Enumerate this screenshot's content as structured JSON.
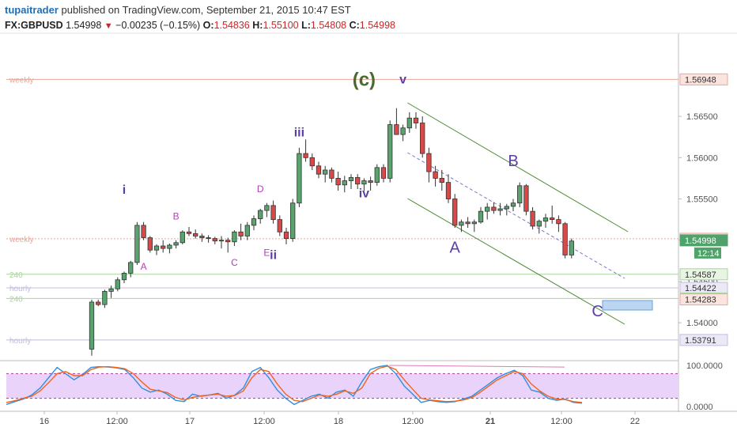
{
  "header": {
    "author": "tupaitrader",
    "published_text": "published on TradingView.com, September 21, 2015 10:47 EST",
    "symbol": "FX:GBPUSD",
    "last": "1.54998",
    "change": "−0.00235 (−0.15%)",
    "o_label": "O:",
    "o_value": "1.54836",
    "h_label": "H:",
    "h_value": "1.55100",
    "l_label": "L:",
    "l_value": "1.54808",
    "c_label": "C:",
    "c_value": "1.54998"
  },
  "colors": {
    "up": "#5aa36e",
    "down": "#d8494a",
    "wave_purple": "#5b3fa3",
    "wave_green": "#4b6b2e",
    "magenta": "#b43fb9",
    "channel": "#4d8a32",
    "midline": "#7f78c8",
    "weekly": "#e8a79a",
    "daily240": "#a8d49a",
    "hourly": "#c4bce0",
    "stoch_k": "#2f8fe0",
    "stoch_d": "#f0641e",
    "stoch_band": "#e9d3fb"
  },
  "chart_data": [
    {
      "type": "candlestick",
      "ylim": [
        1.5355,
        1.5745
      ],
      "x_ticks": [
        "16",
        "12:00",
        "17",
        "12:00",
        "18",
        "12:00",
        "21",
        "12:00",
        "22"
      ],
      "y_ticks": [
        "1.56500",
        "1.56000",
        "1.55500",
        "1.55000",
        "1.54500",
        "1.54000"
      ],
      "candles": [
        [
          1.5368,
          1.5428,
          1.536,
          1.5425
        ],
        [
          1.5425,
          1.5428,
          1.542,
          1.5422
        ],
        [
          1.5422,
          1.544,
          1.5418,
          1.5438
        ],
        [
          1.5438,
          1.5445,
          1.543,
          1.5441
        ],
        [
          1.5441,
          1.5455,
          1.5438,
          1.5452
        ],
        [
          1.5452,
          1.5462,
          1.5448,
          1.546
        ],
        [
          1.546,
          1.5475,
          1.5455,
          1.5473
        ],
        [
          1.5473,
          1.5522,
          1.547,
          1.5518
        ],
        [
          1.5518,
          1.5522,
          1.55,
          1.5503
        ],
        [
          1.5503,
          1.5505,
          1.5485,
          1.5488
        ],
        [
          1.5488,
          1.5495,
          1.5482,
          1.5493
        ],
        [
          1.5493,
          1.55,
          1.5485,
          1.549
        ],
        [
          1.549,
          1.5496,
          1.5484,
          1.5494
        ],
        [
          1.5494,
          1.55,
          1.549,
          1.5497
        ],
        [
          1.5497,
          1.5512,
          1.5495,
          1.551
        ],
        [
          1.551,
          1.5516,
          1.5505,
          1.5508
        ],
        [
          1.5508,
          1.5513,
          1.5502,
          1.5505
        ],
        [
          1.5505,
          1.5508,
          1.5498,
          1.5503
        ],
        [
          1.5503,
          1.5506,
          1.5497,
          1.5502
        ],
        [
          1.5502,
          1.5504,
          1.5495,
          1.5499
        ],
        [
          1.5499,
          1.5505,
          1.549,
          1.55
        ],
        [
          1.55,
          1.5503,
          1.5485,
          1.5498
        ],
        [
          1.5498,
          1.5512,
          1.5493,
          1.551
        ],
        [
          1.551,
          1.552,
          1.55,
          1.5505
        ],
        [
          1.5505,
          1.5522,
          1.55,
          1.5518
        ],
        [
          1.5518,
          1.553,
          1.5512,
          1.5526
        ],
        [
          1.5526,
          1.5538,
          1.552,
          1.5536
        ],
        [
          1.5536,
          1.5545,
          1.5528,
          1.5542
        ],
        [
          1.5542,
          1.5548,
          1.552,
          1.5525
        ],
        [
          1.5525,
          1.553,
          1.5505,
          1.551
        ],
        [
          1.551,
          1.5515,
          1.5495,
          1.5502
        ],
        [
          1.5502,
          1.555,
          1.5498,
          1.5545
        ],
        [
          1.5545,
          1.5612,
          1.554,
          1.5605
        ],
        [
          1.5605,
          1.5622,
          1.5595,
          1.56
        ],
        [
          1.56,
          1.5605,
          1.5585,
          1.559
        ],
        [
          1.559,
          1.5595,
          1.5575,
          1.558
        ],
        [
          1.558,
          1.559,
          1.557,
          1.5585
        ],
        [
          1.5585,
          1.5588,
          1.557,
          1.5575
        ],
        [
          1.5575,
          1.5583,
          1.556,
          1.5567
        ],
        [
          1.5567,
          1.5578,
          1.5558,
          1.5572
        ],
        [
          1.5572,
          1.558,
          1.5562,
          1.5576
        ],
        [
          1.5576,
          1.558,
          1.5562,
          1.5568
        ],
        [
          1.5568,
          1.5575,
          1.556,
          1.5572
        ],
        [
          1.5572,
          1.5577,
          1.556,
          1.557
        ],
        [
          1.557,
          1.5592,
          1.5566,
          1.5588
        ],
        [
          1.5588,
          1.5592,
          1.557,
          1.5575
        ],
        [
          1.5575,
          1.5645,
          1.557,
          1.564
        ],
        [
          1.564,
          1.566,
          1.563,
          1.5628
        ],
        [
          1.5628,
          1.564,
          1.562,
          1.5636
        ],
        [
          1.5636,
          1.5655,
          1.563,
          1.5648
        ],
        [
          1.5648,
          1.5655,
          1.5635,
          1.5642
        ],
        [
          1.5642,
          1.565,
          1.56,
          1.5605
        ],
        [
          1.5605,
          1.5612,
          1.557,
          1.5583
        ],
        [
          1.5583,
          1.559,
          1.5565,
          1.5575
        ],
        [
          1.5575,
          1.5585,
          1.556,
          1.557
        ],
        [
          1.557,
          1.558,
          1.5545,
          1.555
        ],
        [
          1.555,
          1.5556,
          1.5515,
          1.5518
        ],
        [
          1.5518,
          1.5525,
          1.551,
          1.5522
        ],
        [
          1.5522,
          1.5528,
          1.5515,
          1.552
        ],
        [
          1.552,
          1.5525,
          1.551,
          1.5522
        ],
        [
          1.5522,
          1.554,
          1.552,
          1.5535
        ],
        [
          1.5535,
          1.5545,
          1.5525,
          1.554
        ],
        [
          1.554,
          1.5546,
          1.5532,
          1.5536
        ],
        [
          1.5536,
          1.5545,
          1.553,
          1.5538
        ],
        [
          1.5538,
          1.5544,
          1.553,
          1.5541
        ],
        [
          1.5541,
          1.555,
          1.5535,
          1.5545
        ],
        [
          1.5545,
          1.557,
          1.554,
          1.5566
        ],
        [
          1.5566,
          1.5568,
          1.553,
          1.5535
        ],
        [
          1.5535,
          1.554,
          1.5513,
          1.5517
        ],
        [
          1.5517,
          1.5525,
          1.5508,
          1.5523
        ],
        [
          1.5523,
          1.5532,
          1.5515,
          1.5527
        ],
        [
          1.5527,
          1.5542,
          1.552,
          1.5525
        ],
        [
          1.5525,
          1.553,
          1.551,
          1.552
        ],
        [
          1.552,
          1.5522,
          1.5478,
          1.5482
        ],
        [
          1.5482,
          1.5502,
          1.5478,
          1.5499
        ]
      ],
      "price_labels": [
        {
          "value": 1.56948,
          "text": "1.56948",
          "color": "weekly"
        },
        {
          "value": 1.55017,
          "text": "1.55017",
          "color": "weekly"
        },
        {
          "value": 1.54998,
          "text": "1.54998",
          "color": "last"
        },
        {
          "value": 1.54587,
          "text": "1.54587",
          "color": "daily240"
        },
        {
          "value": 1.54422,
          "text": "1.54422",
          "color": "hourly"
        },
        {
          "value": 1.54294,
          "text": "1.54294",
          "color": "daily240"
        },
        {
          "value": 1.54283,
          "text": "1.54283",
          "color": "weekly"
        },
        {
          "value": 1.53791,
          "text": "1.53791",
          "color": "hourly"
        }
      ],
      "countdown": "12:14",
      "level_lines": [
        {
          "value": 1.56948,
          "label": "weekly",
          "color": "weekly"
        },
        {
          "value": 1.55017,
          "label": "weekly",
          "color": "weekly"
        },
        {
          "value": 1.54587,
          "label": "240",
          "color": "daily240"
        },
        {
          "value": 1.54422,
          "label": "hourly",
          "color": "hourly"
        },
        {
          "value": 1.54294,
          "label": "240",
          "color": "daily240"
        },
        {
          "value": 1.53791,
          "label": "hourly",
          "color": "hourly"
        }
      ],
      "wave_labels": [
        {
          "text": "i",
          "color": "wave_purple",
          "bar": 5,
          "price": 1.5556,
          "size": 16,
          "bold": true
        },
        {
          "text": "iii",
          "color": "wave_purple",
          "bar": 32,
          "price": 1.56255,
          "size": 16,
          "bold": true
        },
        {
          "text": "ii",
          "color": "wave_purple",
          "bar": 28,
          "price": 1.5477,
          "size": 16,
          "bold": true
        },
        {
          "text": "iv",
          "color": "wave_purple",
          "bar": 42,
          "price": 1.5552,
          "size": 16,
          "bold": true
        },
        {
          "text": "v",
          "color": "wave_purple",
          "bar": 48,
          "price": 1.569,
          "size": 16,
          "bold": true
        },
        {
          "text": "(c)",
          "color": "wave_green",
          "bar": 42,
          "price": 1.5687,
          "size": 24,
          "bold": true
        },
        {
          "text": "A",
          "color": "magenta",
          "bar": 8,
          "price": 1.5464,
          "size": 12,
          "bold": false
        },
        {
          "text": "B",
          "color": "magenta",
          "bar": 13,
          "price": 1.5525,
          "size": 12,
          "bold": false
        },
        {
          "text": "C",
          "color": "magenta",
          "bar": 22,
          "price": 1.5469,
          "size": 12,
          "bold": false
        },
        {
          "text": "D",
          "color": "magenta",
          "bar": 26,
          "price": 1.5558,
          "size": 12,
          "bold": false
        },
        {
          "text": "E",
          "color": "magenta",
          "bar": 27,
          "price": 1.5481,
          "size": 12,
          "bold": false
        },
        {
          "text": "A",
          "color": "wave_purple",
          "bar": 56,
          "price": 1.5485,
          "size": 20,
          "bold": false
        },
        {
          "text": "B",
          "color": "wave_purple",
          "bar": 65,
          "price": 1.559,
          "size": 20,
          "bold": false
        },
        {
          "text": "C",
          "color": "wave_purple",
          "bar": 78,
          "price": 1.54075,
          "size": 20,
          "bold": false
        }
      ]
    },
    {
      "type": "line",
      "ylim": [
        0,
        100
      ],
      "y_ticks": [
        "100.0000",
        "0.0000"
      ],
      "band": [
        20,
        80
      ],
      "series": [
        {
          "color": "stoch_k",
          "values": [
            5,
            12,
            18,
            28,
            45,
            70,
            95,
            80,
            65,
            78,
            95,
            97,
            96,
            94,
            90,
            70,
            45,
            35,
            40,
            30,
            15,
            12,
            30,
            25,
            28,
            32,
            20,
            28,
            45,
            85,
            95,
            70,
            40,
            20,
            5,
            15,
            25,
            30,
            20,
            35,
            40,
            25,
            60,
            90,
            97,
            100,
            80,
            50,
            30,
            10,
            15,
            12,
            10,
            12,
            18,
            25,
            40,
            55,
            70,
            80,
            88,
            75,
            40,
            35,
            20,
            15,
            18,
            10,
            8
          ]
        },
        {
          "color": "stoch_d",
          "values": [
            10,
            14,
            20,
            25,
            38,
            58,
            80,
            85,
            75,
            75,
            90,
            96,
            97,
            95,
            92,
            80,
            60,
            42,
            38,
            34,
            22,
            16,
            22,
            26,
            28,
            30,
            25,
            27,
            38,
            70,
            90,
            85,
            55,
            30,
            15,
            12,
            20,
            28,
            25,
            30,
            38,
            32,
            45,
            80,
            93,
            98,
            90,
            65,
            42,
            20,
            16,
            14,
            12,
            13,
            16,
            22,
            35,
            50,
            65,
            75,
            85,
            80,
            55,
            38,
            25,
            18,
            17,
            12,
            10
          ]
        }
      ]
    }
  ]
}
